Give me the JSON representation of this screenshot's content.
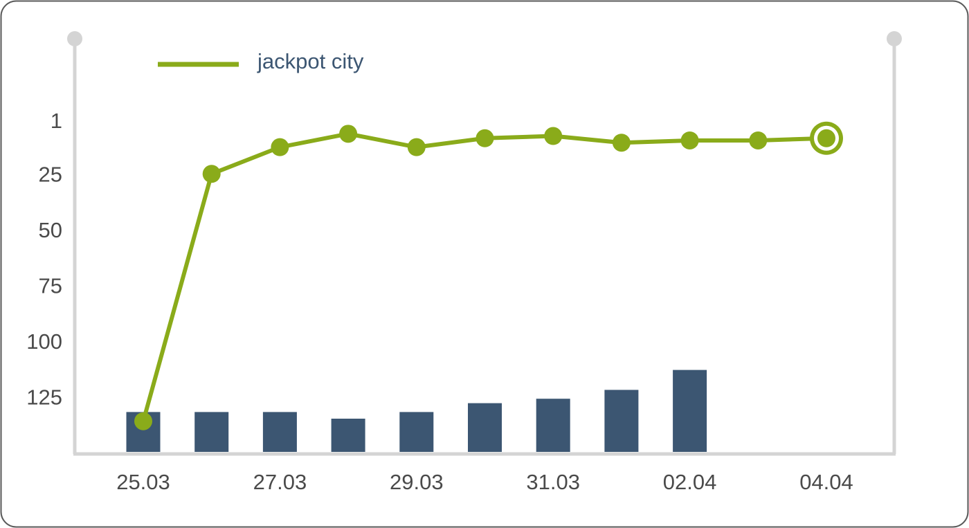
{
  "chart_data": {
    "type": "line",
    "title": "",
    "xlabel": "",
    "ylabel": "",
    "y_reversed": true,
    "ylim": [
      1,
      150
    ],
    "y_ticks": [
      "1",
      "25",
      "50",
      "75",
      "100",
      "125"
    ],
    "y_tick_values": [
      1,
      25,
      50,
      75,
      100,
      125
    ],
    "x_tick_labels": [
      "25.03",
      "27.03",
      "29.03",
      "31.03",
      "02.04",
      "04.04"
    ],
    "x_tick_dates": [
      "25.03",
      "27.03",
      "29.03",
      "31.03",
      "02.04",
      "04.04"
    ],
    "dates": [
      "25.03",
      "26.03",
      "27.03",
      "28.03",
      "29.03",
      "30.03",
      "31.03",
      "01.04",
      "02.04",
      "03.04",
      "04.04"
    ],
    "legend": {
      "placement": "top-left",
      "entries": [
        "jackpot city"
      ]
    },
    "series": [
      {
        "name": "jackpot city",
        "kind": "line",
        "values": [
          136,
          25,
          13,
          7,
          13,
          9,
          8,
          11,
          10,
          10,
          9
        ],
        "last_point_highlighted": true
      },
      {
        "kind": "bar",
        "values": [
          18,
          18,
          18,
          15,
          18,
          22,
          24,
          28,
          37,
          null,
          null
        ]
      }
    ],
    "grid": false
  },
  "colors": {
    "line": "#8aab1a",
    "bars": "#3c5672",
    "axis": "#d4d4d4",
    "frame": "#5a5a5a",
    "legend_text": "#3c5672",
    "tick_text": "#4a4a4a"
  }
}
